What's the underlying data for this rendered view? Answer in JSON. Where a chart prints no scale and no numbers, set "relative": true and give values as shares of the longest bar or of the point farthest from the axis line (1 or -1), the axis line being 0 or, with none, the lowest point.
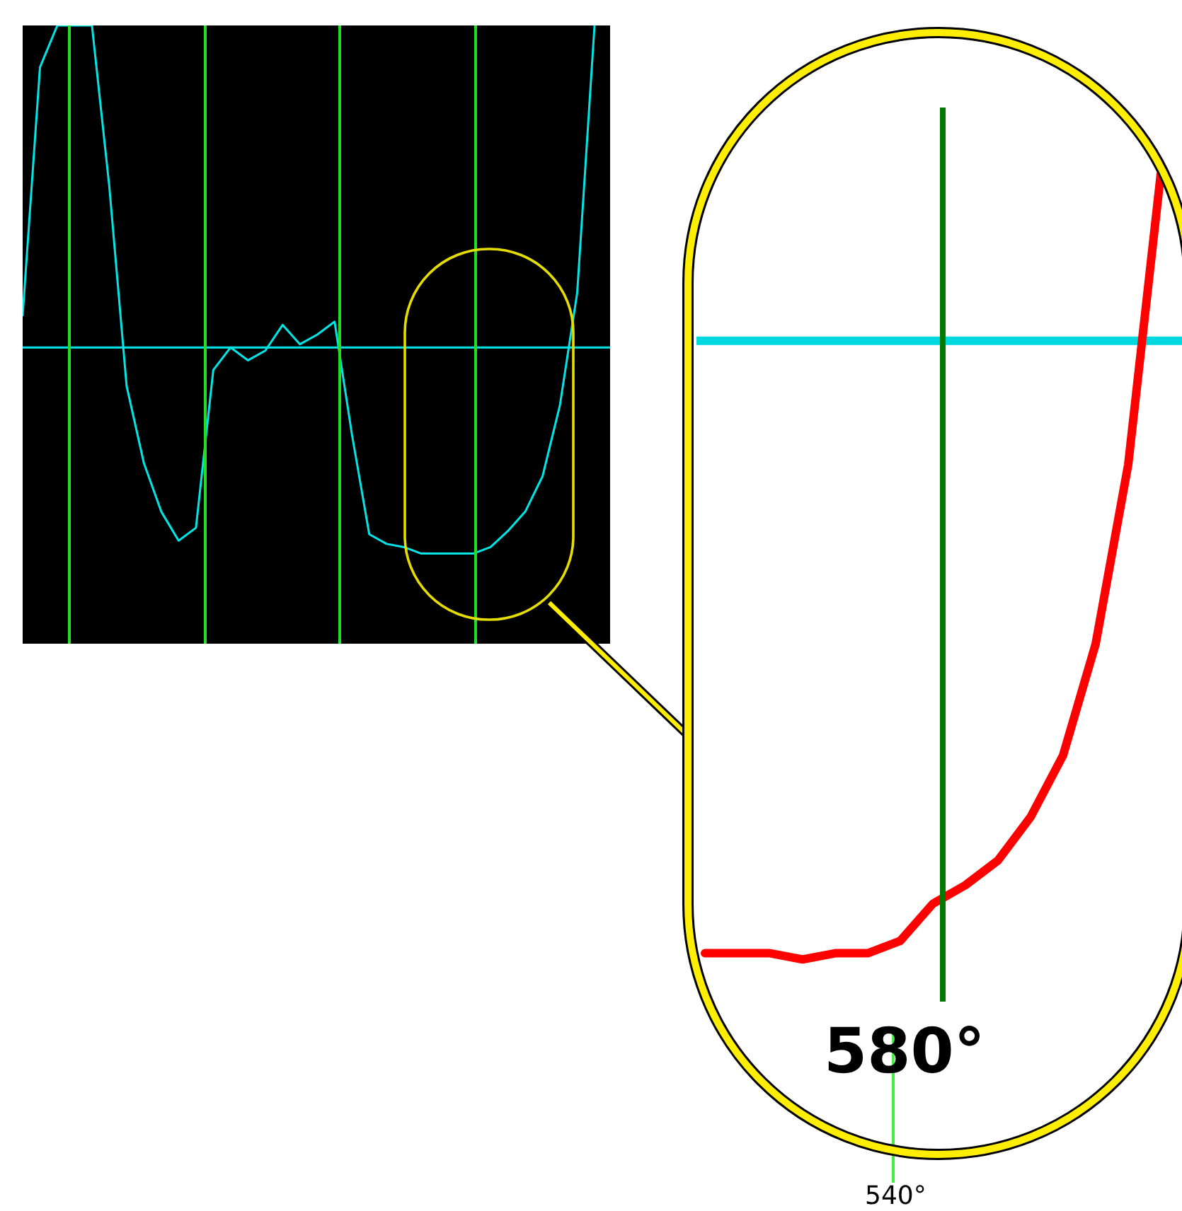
{
  "chart_data": [
    {
      "type": "line",
      "relative": true,
      "categories": [
        null,
        null,
        null,
        null,
        null,
        null,
        null,
        null,
        null,
        null,
        null,
        null,
        null,
        null,
        null,
        null,
        null,
        null,
        null,
        null,
        null,
        null,
        null,
        null,
        null,
        null,
        null,
        null,
        null,
        null,
        null,
        null,
        null,
        null
      ],
      "ref_lines": [
        {
          "axis": "y",
          "value": 0,
          "color": "#00e5e5"
        }
      ],
      "series": [
        {
          "color": "#00e5e5",
          "values": [
            0.1,
            0.87,
            1,
            1,
            1,
            0.5,
            -0.12,
            -0.36,
            -0.51,
            -0.6,
            -0.56,
            -0.07,
            0,
            -0.04,
            -0.01,
            0.07,
            0.01,
            0.04,
            0.08,
            -0.27,
            -0.58,
            -0.61,
            -0.62,
            -0.64,
            -0.64,
            -0.64,
            -0.64,
            -0.62,
            -0.57,
            -0.51,
            -0.4,
            -0.18,
            0.17,
            1
          ]
        }
      ]
    },
    {
      "type": "line",
      "relative": true,
      "categories": [
        null,
        null,
        null,
        null,
        null,
        null,
        null,
        null,
        null,
        null,
        null,
        null,
        null,
        null,
        null
      ],
      "annotations": [
        "580°",
        "540°"
      ],
      "ref_lines": [
        {
          "axis": "y",
          "value": 0,
          "color": "#00d8e0"
        }
      ],
      "series": [
        {
          "color": "#ff0000",
          "values": [
            -0.99,
            -0.99,
            -0.99,
            -1,
            -0.99,
            -0.99,
            -0.97,
            -0.91,
            -0.88,
            -0.84,
            -0.77,
            -0.67,
            -0.49,
            -0.2,
            0.27
          ]
        }
      ]
    }
  ]
}
